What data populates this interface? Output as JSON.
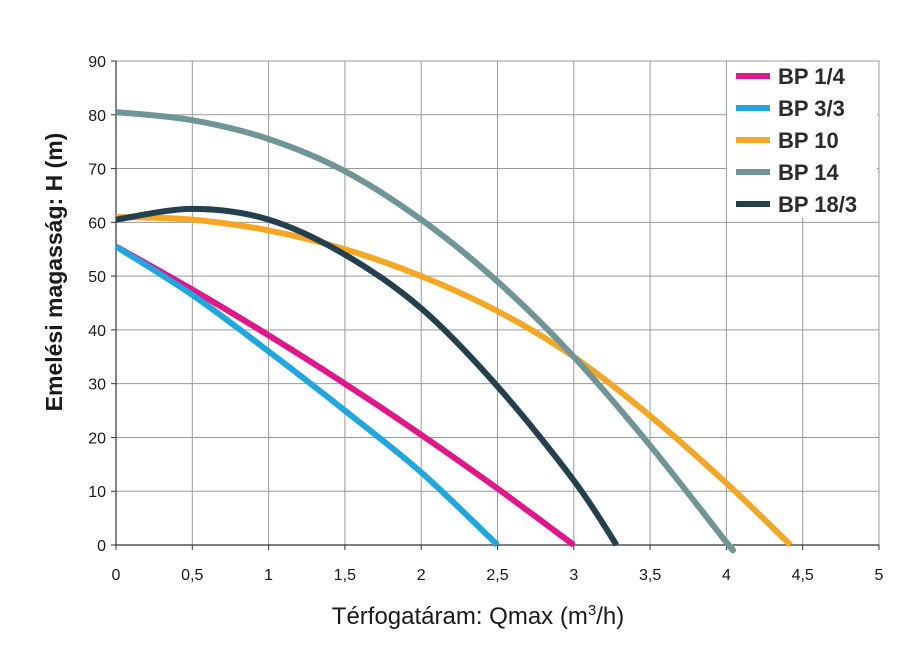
{
  "chart_data": {
    "type": "line",
    "xlabel_prefix": "Térfogatáram: Qmax (m",
    "xlabel_sup": "3",
    "xlabel_suffix": "/h)",
    "ylabel": "Emelési magasság: H (m)",
    "xlim": [
      0,
      5
    ],
    "ylim": [
      0,
      90
    ],
    "x_ticks": [
      0,
      0.5,
      1,
      1.5,
      2,
      2.5,
      3,
      3.5,
      4,
      4.5,
      5
    ],
    "x_tick_labels": [
      "0",
      "0,5",
      "1",
      "1,5",
      "2",
      "2,5",
      "3",
      "3,5",
      "4",
      "4,5",
      "5"
    ],
    "y_ticks": [
      0,
      10,
      20,
      30,
      40,
      50,
      60,
      70,
      80,
      90
    ],
    "y_tick_labels": [
      "0",
      "10",
      "20",
      "30",
      "40",
      "50",
      "60",
      "70",
      "80",
      "90"
    ],
    "grid": true,
    "legend_position": "top-right",
    "series": [
      {
        "name": "BP 1/4",
        "color": "#e2168a",
        "x": [
          0,
          0.5,
          1,
          1.5,
          2,
          2.5,
          3
        ],
        "y": [
          55.5,
          47.5,
          39,
          30,
          20.5,
          10.5,
          0
        ]
      },
      {
        "name": "BP 3/3",
        "color": "#1ea7e0",
        "x": [
          0,
          0.5,
          1,
          1.5,
          2,
          2.5
        ],
        "y": [
          55.5,
          46.5,
          36,
          25,
          13.5,
          0
        ]
      },
      {
        "name": "BP 10",
        "color": "#f5a623",
        "x": [
          0,
          0.5,
          1,
          1.5,
          2,
          2.5,
          3,
          3.5,
          4,
          4.42
        ],
        "y": [
          61,
          60.5,
          58.5,
          55,
          50,
          43.5,
          35,
          24,
          11.5,
          0
        ]
      },
      {
        "name": "BP 14",
        "color": "#6f9596",
        "x": [
          0,
          0.5,
          1,
          1.5,
          2,
          2.5,
          3,
          3.5,
          4,
          4.02
        ],
        "y": [
          80.5,
          79,
          75.5,
          69.5,
          60.5,
          49,
          35,
          18.5,
          0.5,
          0
        ]
      },
      {
        "name": "BP 18/3",
        "color": "#24404f",
        "x": [
          0,
          0.5,
          1,
          1.5,
          2,
          2.5,
          3,
          3.28
        ],
        "y": [
          60.5,
          62.5,
          60.5,
          54,
          44,
          29.5,
          12,
          0
        ]
      }
    ]
  }
}
